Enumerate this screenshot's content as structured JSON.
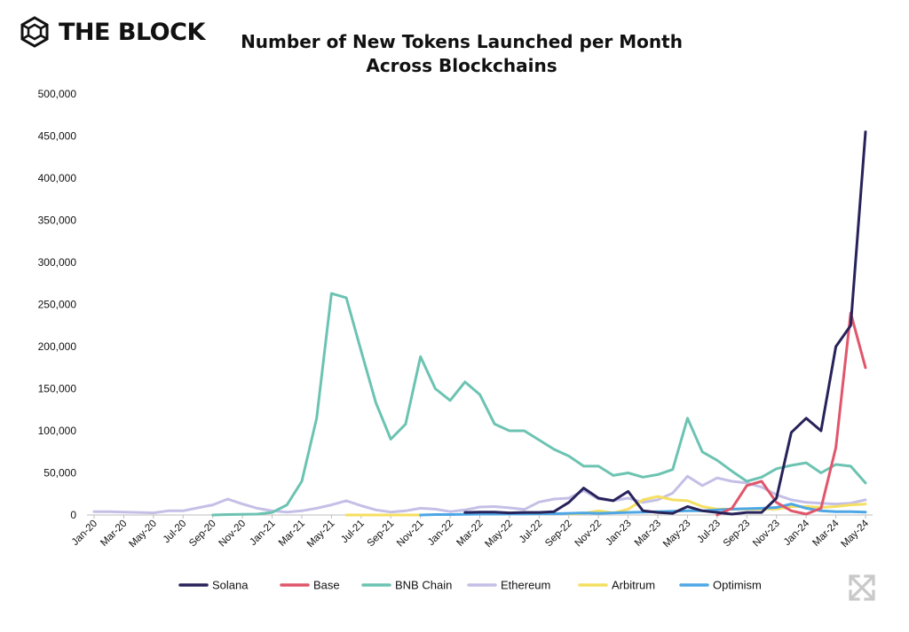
{
  "brand": {
    "name": "THE BLOCK",
    "logo_icon": "cube-logo-icon"
  },
  "ui": {
    "expand_icon": "expand-arrows-icon"
  },
  "chart_data": {
    "type": "line",
    "title_lines": [
      "Number of New Tokens Launched per Month",
      "Across Blockchains"
    ],
    "xlabel": "",
    "ylabel": "",
    "ylim": [
      0,
      500000
    ],
    "yticks": [
      0,
      50000,
      100000,
      150000,
      200000,
      250000,
      300000,
      350000,
      400000,
      450000,
      500000
    ],
    "ytick_labels": [
      "0",
      "50,000",
      "100,000",
      "150,000",
      "200,000",
      "250,000",
      "300,000",
      "350,000",
      "400,000",
      "450,000",
      "500,000"
    ],
    "categories": [
      "Jan-20",
      "Feb-20",
      "Mar-20",
      "Apr-20",
      "May-20",
      "Jun-20",
      "Jul-20",
      "Aug-20",
      "Sep-20",
      "Oct-20",
      "Nov-20",
      "Dec-20",
      "Jan-21",
      "Feb-21",
      "Mar-21",
      "Apr-21",
      "May-21",
      "Jun-21",
      "Jul-21",
      "Aug-21",
      "Sep-21",
      "Oct-21",
      "Nov-21",
      "Dec-21",
      "Jan-22",
      "Feb-22",
      "Mar-22",
      "Apr-22",
      "May-22",
      "Jun-22",
      "Jul-22",
      "Aug-22",
      "Sep-22",
      "Oct-22",
      "Nov-22",
      "Dec-22",
      "Jan-23",
      "Feb-23",
      "Mar-23",
      "Apr-23",
      "May-23",
      "Jun-23",
      "Jul-23",
      "Aug-23",
      "Sep-23",
      "Oct-23",
      "Nov-23",
      "Dec-23",
      "Jan-24",
      "Feb-24",
      "Mar-24",
      "Apr-24",
      "May-24"
    ],
    "xtick_labels": [
      "Jan-20",
      "Mar-20",
      "May-20",
      "Jul-20",
      "Sep-20",
      "Nov-20",
      "Jan-21",
      "Mar-21",
      "May-21",
      "Jul-21",
      "Sep-21",
      "Nov-21",
      "Jan-22",
      "Mar-22",
      "May-22",
      "Jul-22",
      "Sep-22",
      "Nov-22",
      "Jan-23",
      "Mar-23",
      "May-23",
      "Jul-23",
      "Sep-23",
      "Nov-23",
      "Jan-24",
      "Mar-24",
      "May-24"
    ],
    "grid": false,
    "legend_position": "bottom",
    "series": [
      {
        "name": "Ethereum",
        "color": "#c4bfe6",
        "values": [
          4000,
          4000,
          3500,
          3000,
          2500,
          5000,
          5000,
          8500,
          12000,
          19000,
          13000,
          8000,
          5000,
          3500,
          5000,
          8000,
          12000,
          17000,
          11000,
          6000,
          3500,
          5000,
          8000,
          7000,
          4000,
          6000,
          9500,
          10000,
          8500,
          6500,
          15500,
          19000,
          20000,
          29000,
          19000,
          17000,
          20000,
          15000,
          18000,
          26000,
          46000,
          35000,
          44000,
          40000,
          38000,
          33000,
          24000,
          18000,
          15000,
          14000,
          13000,
          14000,
          18000
        ]
      },
      {
        "name": "BNB Chain",
        "color": "#6cc3b2",
        "values": [
          null,
          null,
          null,
          null,
          null,
          null,
          null,
          null,
          0,
          500,
          800,
          1000,
          3000,
          12000,
          40000,
          115000,
          263000,
          258000,
          195000,
          133000,
          90000,
          108000,
          188000,
          150000,
          136000,
          158000,
          143000,
          108000,
          100000,
          100000,
          89000,
          78000,
          70000,
          58000,
          58000,
          47000,
          50000,
          45000,
          48000,
          54000,
          115000,
          75000,
          65000,
          52000,
          40000,
          45000,
          55000,
          59000,
          62000,
          50000,
          60000,
          58000,
          38000
        ]
      },
      {
        "name": "Arbitrum",
        "color": "#f5df62",
        "values": [
          null,
          null,
          null,
          null,
          null,
          null,
          null,
          null,
          null,
          null,
          null,
          null,
          null,
          null,
          null,
          null,
          null,
          0,
          0,
          0,
          0,
          0,
          0,
          null,
          null,
          null,
          null,
          null,
          null,
          null,
          null,
          null,
          1000,
          2000,
          5000,
          2500,
          7000,
          18000,
          22000,
          18000,
          17000,
          10000,
          7000,
          7000,
          7000,
          7000,
          7000,
          10000,
          10000,
          9000,
          10000,
          12000,
          13000
        ]
      },
      {
        "name": "Optimism",
        "color": "#4da7e6",
        "values": [
          null,
          null,
          null,
          null,
          null,
          null,
          null,
          null,
          null,
          null,
          null,
          null,
          null,
          null,
          null,
          null,
          null,
          null,
          null,
          null,
          null,
          null,
          0,
          500,
          500,
          800,
          1000,
          1000,
          1200,
          1200,
          1500,
          1500,
          2000,
          2500,
          2000,
          2500,
          3000,
          3500,
          4000,
          4500,
          5000,
          5000,
          6000,
          7000,
          7500,
          8000,
          9000,
          13000,
          8000,
          5000,
          4000,
          4000,
          3500
        ]
      },
      {
        "name": "Base",
        "color": "#e0566b",
        "values": [
          null,
          null,
          null,
          null,
          null,
          null,
          null,
          null,
          null,
          null,
          null,
          null,
          null,
          null,
          null,
          null,
          null,
          null,
          null,
          null,
          null,
          null,
          null,
          null,
          null,
          null,
          null,
          null,
          null,
          null,
          null,
          null,
          null,
          null,
          null,
          null,
          null,
          null,
          null,
          null,
          null,
          null,
          0,
          8000,
          35000,
          40000,
          15000,
          5000,
          1000,
          8000,
          80000,
          240000,
          175000
        ]
      },
      {
        "name": "Solana",
        "color": "#27235a",
        "values": [
          null,
          null,
          null,
          null,
          null,
          null,
          null,
          null,
          null,
          null,
          null,
          null,
          null,
          null,
          null,
          null,
          null,
          null,
          null,
          null,
          null,
          null,
          null,
          null,
          null,
          3000,
          3500,
          3500,
          2500,
          3000,
          3000,
          4000,
          15000,
          32000,
          20000,
          17000,
          28000,
          5000,
          3000,
          2000,
          10000,
          5000,
          3000,
          1000,
          3000,
          3000,
          20000,
          98000,
          115000,
          100000,
          200000,
          225000,
          455000
        ]
      }
    ],
    "legend_order": [
      "Solana",
      "Base",
      "BNB Chain",
      "Ethereum",
      "Arbitrum",
      "Optimism"
    ]
  }
}
